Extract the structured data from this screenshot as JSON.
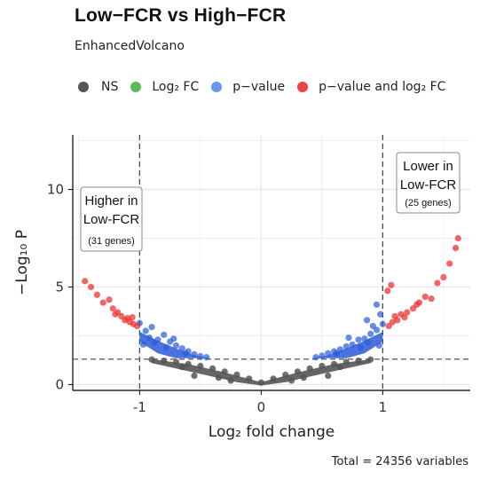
{
  "title": "Low−FCR vs High−FCR",
  "subtitle": "EnhancedVolcano",
  "legend": [
    {
      "label": "NS",
      "color": "#555555"
    },
    {
      "label": "Log₂ FC",
      "color": "#5cb85c"
    },
    {
      "label": "p−value",
      "color": "#6699ee"
    },
    {
      "label": "p−value and log₂ FC",
      "color": "#ee4444"
    }
  ],
  "caption": "Total = 24356 variables",
  "chart_data": {
    "type": "scatter",
    "xlabel": "Log₂ fold change",
    "ylabel": "−Log₁₀ P",
    "xlim": [
      -1.55,
      1.72
    ],
    "ylim": [
      -0.3,
      12.8
    ],
    "x_ticks": [
      -1,
      0,
      1
    ],
    "x_tick_labels": [
      "-1",
      "0",
      "1"
    ],
    "y_ticks": [
      0,
      5,
      10
    ],
    "y_tick_labels": [
      "0",
      "5",
      "10"
    ],
    "grid": true,
    "fc_cutoff": 1,
    "p_cutoff_neglog10": 1.3,
    "annotations": [
      {
        "lines": [
          "Higher in",
          "Low-FCR"
        ],
        "detail": "(31 genes)",
        "side": "left"
      },
      {
        "lines": [
          "Lower in",
          "Low-FCR"
        ],
        "detail": "(25 genes)",
        "side": "right"
      }
    ],
    "series": [
      {
        "color": "#555555",
        "points": [
          [
            -0.9,
            1.28
          ],
          [
            -0.8,
            1.22
          ],
          [
            -0.7,
            1.15
          ],
          [
            -0.6,
            1.05
          ],
          [
            -0.5,
            0.95
          ],
          [
            -0.4,
            0.82
          ],
          [
            -0.3,
            0.66
          ],
          [
            -0.2,
            0.5
          ],
          [
            -0.1,
            0.3
          ],
          [
            0,
            0.1
          ],
          [
            0.1,
            0.3
          ],
          [
            0.2,
            0.5
          ],
          [
            0.3,
            0.66
          ],
          [
            0.4,
            0.82
          ],
          [
            0.5,
            0.95
          ],
          [
            0.6,
            1.05
          ],
          [
            0.7,
            1.15
          ],
          [
            0.8,
            1.22
          ],
          [
            0.9,
            1.28
          ],
          [
            -0.25,
            0.2
          ],
          [
            0.25,
            0.2
          ],
          [
            -0.55,
            0.45
          ],
          [
            0.55,
            0.45
          ],
          [
            -0.65,
            0.9
          ],
          [
            0.65,
            0.9
          ],
          [
            -0.35,
            0.35
          ],
          [
            0.35,
            0.35
          ]
        ]
      },
      {
        "color": "#2a5bd7",
        "points": [
          [
            -1.0,
            3.15
          ],
          [
            -0.95,
            2.75
          ],
          [
            -0.9,
            2.95
          ],
          [
            -0.85,
            2.3
          ],
          [
            -0.8,
            2.55
          ],
          [
            -0.75,
            2.2
          ],
          [
            -0.7,
            2.0
          ],
          [
            -0.65,
            1.85
          ],
          [
            -0.6,
            1.7
          ],
          [
            -0.55,
            1.55
          ],
          [
            -0.5,
            1.45
          ],
          [
            -0.45,
            1.4
          ],
          [
            -0.92,
            2.4
          ],
          [
            -0.78,
            1.9
          ],
          [
            -0.72,
            2.35
          ],
          [
            -0.62,
            1.6
          ],
          [
            -0.97,
            2.05
          ],
          [
            -0.88,
            2.15
          ],
          [
            1.0,
            3.1
          ],
          [
            0.95,
            2.8
          ],
          [
            0.9,
            2.6
          ],
          [
            0.85,
            2.35
          ],
          [
            0.8,
            2.3
          ],
          [
            0.75,
            2.05
          ],
          [
            0.7,
            1.95
          ],
          [
            0.65,
            1.8
          ],
          [
            0.6,
            1.7
          ],
          [
            0.55,
            1.6
          ],
          [
            0.5,
            1.48
          ],
          [
            0.45,
            1.4
          ],
          [
            0.97,
            2.0
          ],
          [
            0.88,
            2.15
          ],
          [
            0.82,
            1.9
          ],
          [
            0.72,
            2.4
          ],
          [
            0.62,
            1.6
          ],
          [
            0.92,
            3.0
          ],
          [
            0.87,
            3.3
          ],
          [
            0.98,
            3.6
          ],
          [
            0.95,
            4.1
          ]
        ]
      },
      {
        "color": "#ee3333",
        "points": [
          [
            -1.45,
            5.3
          ],
          [
            -1.4,
            5.0
          ],
          [
            -1.35,
            4.6
          ],
          [
            -1.25,
            4.35
          ],
          [
            -1.22,
            3.9
          ],
          [
            -1.2,
            3.6
          ],
          [
            -1.15,
            3.5
          ],
          [
            -1.1,
            3.4
          ],
          [
            -1.08,
            3.2
          ],
          [
            -1.05,
            3.1
          ],
          [
            -1.12,
            3.3
          ],
          [
            -1.18,
            3.7
          ],
          [
            -1.02,
            3.0
          ],
          [
            -1.3,
            4.2
          ],
          [
            -1.06,
            3.45
          ],
          [
            1.05,
            3.0
          ],
          [
            1.08,
            3.2
          ],
          [
            1.1,
            3.5
          ],
          [
            1.15,
            3.6
          ],
          [
            1.2,
            3.7
          ],
          [
            1.25,
            3.9
          ],
          [
            1.3,
            4.2
          ],
          [
            1.35,
            4.5
          ],
          [
            1.4,
            4.4
          ],
          [
            1.45,
            5.2
          ],
          [
            1.5,
            5.5
          ],
          [
            1.55,
            6.2
          ],
          [
            1.6,
            7.0
          ],
          [
            1.62,
            7.5
          ],
          [
            1.12,
            3.3
          ],
          [
            1.18,
            3.45
          ],
          [
            1.28,
            4.1
          ],
          [
            1.04,
            4.8
          ],
          [
            1.07,
            5.1
          ]
        ]
      }
    ]
  }
}
